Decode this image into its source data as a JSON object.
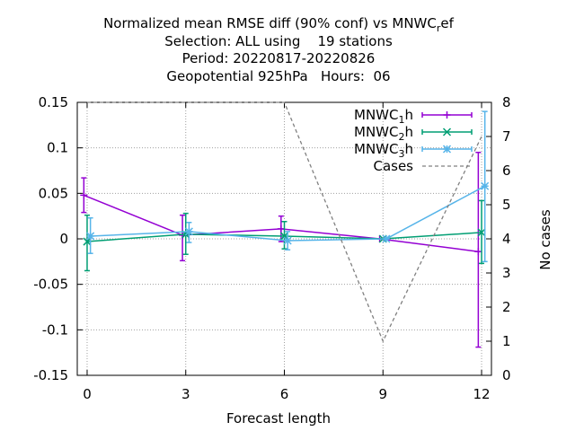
{
  "title_lines": [
    "Normalized mean RMSE diff (90% conf) vs MNWC_ref",
    "Selection: ALL using    19 stations",
    "Period: 20220817-20220826",
    "Geopotential 925hPa   Hours:  06"
  ],
  "chart_data": {
    "type": "line",
    "xlabel": "Forecast length",
    "ylabel": "",
    "y2label": "No cases",
    "xlim": [
      -0.3,
      12.3
    ],
    "ylim": [
      -0.15,
      0.15
    ],
    "y2lim": [
      0,
      8
    ],
    "xticks": [
      0,
      3,
      6,
      9,
      12
    ],
    "yticks": [
      -0.15,
      -0.1,
      -0.05,
      0,
      0.05,
      0.1,
      0.15
    ],
    "ytick_labels": [
      "-0.15",
      "-0.1",
      "-0.05",
      "0",
      "0.05",
      "0.1",
      "0.15"
    ],
    "y2ticks": [
      0,
      1,
      2,
      3,
      4,
      5,
      6,
      7,
      8
    ],
    "grid": true,
    "legend_position": "top-right",
    "series": [
      {
        "name": "MNWC_1h",
        "color": "#9400d3",
        "marker": "plus",
        "x": [
          -0.1,
          2.9,
          5.9,
          8.9,
          11.9
        ],
        "y": [
          0.048,
          0.004,
          0.011,
          0.0,
          -0.014
        ],
        "err_low": [
          0.029,
          -0.024,
          -0.003,
          0.0,
          -0.119
        ],
        "err_high": [
          0.067,
          0.026,
          0.025,
          0.0,
          0.095
        ]
      },
      {
        "name": "MNWC_2h",
        "color": "#009e73",
        "marker": "x",
        "x": [
          0.0,
          3.0,
          6.0,
          9.0,
          12.0
        ],
        "y": [
          -0.003,
          0.005,
          0.003,
          0.0,
          0.007
        ],
        "err_low": [
          -0.035,
          -0.017,
          -0.011,
          0.0,
          -0.027
        ],
        "err_high": [
          0.026,
          0.028,
          0.019,
          0.0,
          0.042
        ]
      },
      {
        "name": "MNWC_3h",
        "color": "#56b4e9",
        "marker": "star",
        "x": [
          0.1,
          3.1,
          6.1,
          9.1,
          12.1
        ],
        "y": [
          0.003,
          0.008,
          -0.002,
          0.0,
          0.058
        ],
        "err_low": [
          -0.016,
          -0.004,
          -0.012,
          0.0,
          -0.025
        ],
        "err_high": [
          0.023,
          0.018,
          0.008,
          0.0,
          0.14
        ]
      },
      {
        "name": "Cases",
        "color": "#808080",
        "dashed": true,
        "axis": "y2",
        "x": [
          0,
          3,
          6,
          9,
          12
        ],
        "y": [
          8,
          8,
          8,
          1,
          7
        ]
      }
    ]
  }
}
